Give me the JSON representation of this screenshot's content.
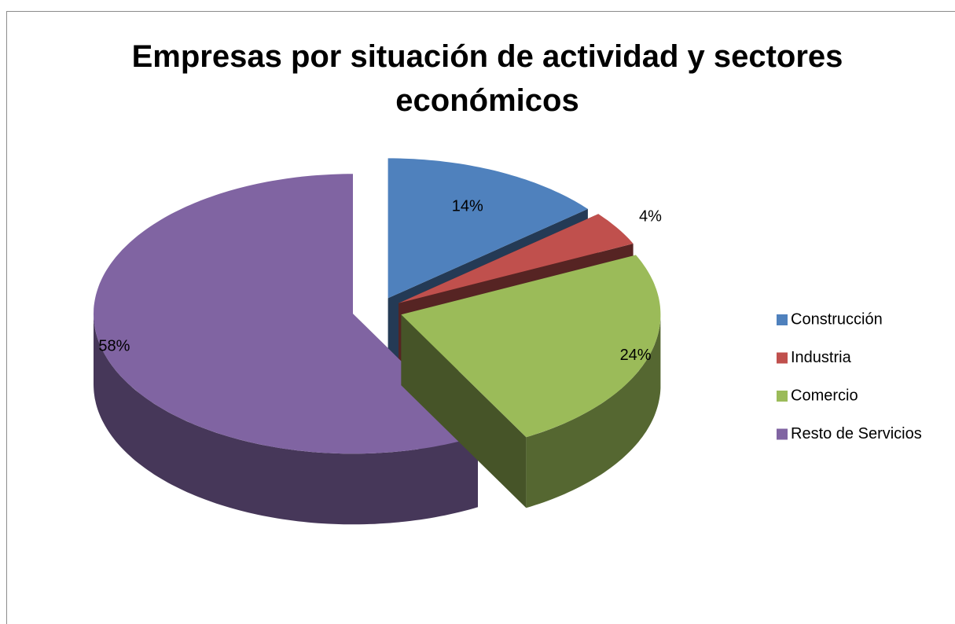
{
  "chart_data": {
    "type": "pie",
    "title": "Empresas por situación de actividad y sectores económicos",
    "categories": [
      "Construcción",
      "Industria",
      "Comercio",
      "Resto de Servicios"
    ],
    "values": [
      14,
      4,
      24,
      58
    ],
    "value_labels": [
      "14%",
      "4%",
      "24%",
      "58%"
    ],
    "colors": [
      "#4f81bd",
      "#c0504d",
      "#9bbb59",
      "#8064a2"
    ],
    "legend": "right"
  }
}
